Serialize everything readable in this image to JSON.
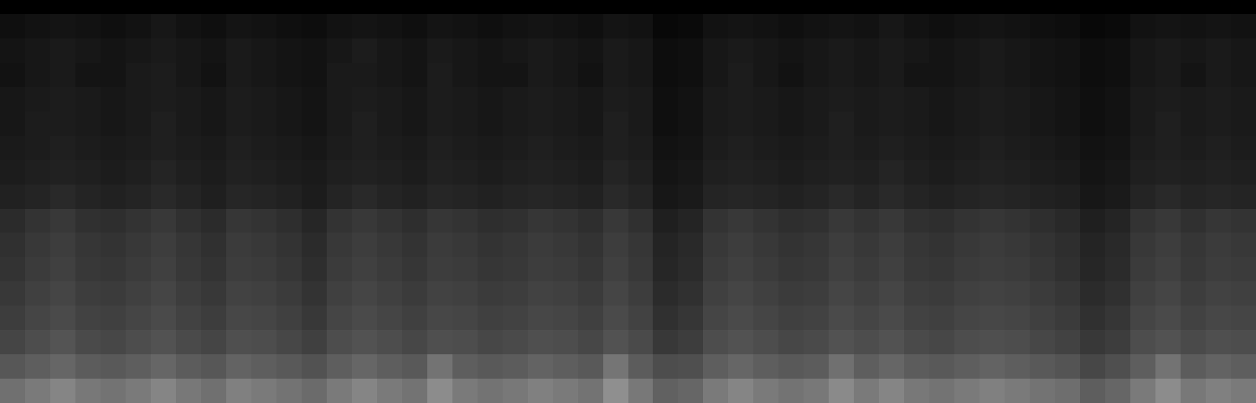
{
  "chart_data": {
    "type": "heatmap",
    "tick_labels": false,
    "zlim": [
      0,
      100
    ],
    "cells": [
      [
        6,
        7,
        8,
        7,
        6,
        7,
        9,
        7,
        6,
        8,
        7,
        6,
        5,
        7,
        8,
        7,
        6,
        8,
        7,
        6,
        7,
        8,
        7,
        6,
        8,
        7,
        3,
        4,
        7,
        8,
        7,
        6,
        7,
        8,
        7,
        9,
        7,
        6,
        7,
        8,
        7,
        6,
        5,
        3,
        4,
        7,
        8,
        7,
        8,
        7
      ],
      [
        8,
        9,
        10,
        9,
        8,
        9,
        10,
        9,
        8,
        10,
        9,
        8,
        7,
        9,
        11,
        9,
        8,
        10,
        9,
        8,
        9,
        10,
        9,
        8,
        10,
        9,
        5,
        6,
        9,
        10,
        9,
        8,
        9,
        10,
        9,
        10,
        9,
        8,
        9,
        10,
        9,
        8,
        7,
        5,
        6,
        9,
        10,
        9,
        10,
        9
      ],
      [
        7,
        9,
        10,
        8,
        8,
        10,
        11,
        9,
        7,
        10,
        9,
        8,
        7,
        10,
        10,
        9,
        8,
        11,
        9,
        8,
        8,
        10,
        9,
        7,
        10,
        9,
        5,
        6,
        9,
        11,
        9,
        7,
        9,
        10,
        9,
        10,
        8,
        8,
        9,
        10,
        9,
        8,
        7,
        5,
        6,
        9,
        10,
        8,
        10,
        9
      ],
      [
        9,
        10,
        11,
        10,
        9,
        10,
        11,
        10,
        9,
        11,
        10,
        9,
        8,
        10,
        11,
        10,
        9,
        11,
        10,
        9,
        10,
        11,
        10,
        9,
        11,
        10,
        6,
        7,
        10,
        11,
        10,
        9,
        10,
        11,
        10,
        11,
        10,
        9,
        10,
        11,
        10,
        9,
        8,
        6,
        7,
        10,
        11,
        10,
        11,
        10
      ],
      [
        9,
        11,
        11,
        10,
        9,
        10,
        12,
        10,
        9,
        11,
        10,
        9,
        8,
        10,
        12,
        10,
        9,
        11,
        10,
        9,
        10,
        11,
        10,
        9,
        12,
        10,
        6,
        7,
        10,
        11,
        10,
        9,
        10,
        12,
        10,
        11,
        10,
        9,
        10,
        11,
        10,
        9,
        8,
        6,
        7,
        10,
        12,
        10,
        11,
        10
      ],
      [
        10,
        11,
        12,
        11,
        10,
        11,
        12,
        11,
        10,
        12,
        11,
        10,
        9,
        11,
        12,
        11,
        10,
        12,
        11,
        10,
        11,
        12,
        11,
        10,
        12,
        11,
        7,
        8,
        11,
        12,
        11,
        10,
        11,
        12,
        11,
        12,
        11,
        10,
        11,
        12,
        11,
        10,
        9,
        7,
        8,
        11,
        12,
        11,
        12,
        11
      ],
      [
        11,
        12,
        13,
        12,
        11,
        12,
        14,
        12,
        11,
        13,
        12,
        11,
        10,
        12,
        13,
        12,
        11,
        13,
        12,
        11,
        12,
        13,
        12,
        11,
        14,
        12,
        8,
        9,
        12,
        13,
        12,
        11,
        12,
        13,
        12,
        14,
        12,
        11,
        12,
        13,
        12,
        11,
        10,
        8,
        9,
        12,
        13,
        12,
        13,
        12
      ],
      [
        13,
        14,
        16,
        14,
        13,
        14,
        16,
        14,
        12,
        15,
        14,
        13,
        11,
        14,
        16,
        14,
        13,
        15,
        14,
        13,
        14,
        15,
        14,
        13,
        16,
        14,
        9,
        10,
        14,
        15,
        14,
        13,
        14,
        16,
        14,
        16,
        14,
        13,
        14,
        15,
        14,
        13,
        12,
        9,
        10,
        14,
        16,
        14,
        15,
        14
      ],
      [
        17,
        20,
        22,
        19,
        18,
        20,
        22,
        19,
        17,
        21,
        20,
        18,
        15,
        20,
        22,
        20,
        18,
        21,
        20,
        18,
        19,
        21,
        20,
        18,
        22,
        19,
        12,
        14,
        20,
        22,
        20,
        18,
        19,
        22,
        20,
        22,
        19,
        18,
        20,
        21,
        20,
        18,
        16,
        12,
        14,
        20,
        22,
        19,
        21,
        20
      ],
      [
        19,
        22,
        24,
        21,
        20,
        22,
        24,
        21,
        19,
        23,
        22,
        20,
        17,
        22,
        24,
        22,
        20,
        23,
        22,
        20,
        21,
        23,
        22,
        20,
        24,
        21,
        14,
        16,
        22,
        24,
        22,
        20,
        21,
        24,
        22,
        24,
        21,
        20,
        22,
        23,
        22,
        20,
        18,
        14,
        16,
        22,
        24,
        21,
        23,
        22
      ],
      [
        20,
        23,
        25,
        22,
        21,
        23,
        25,
        22,
        20,
        24,
        23,
        21,
        18,
        23,
        25,
        23,
        21,
        24,
        23,
        21,
        22,
        24,
        23,
        21,
        25,
        22,
        15,
        17,
        23,
        25,
        23,
        21,
        22,
        25,
        23,
        25,
        22,
        21,
        23,
        24,
        23,
        21,
        19,
        15,
        17,
        23,
        25,
        22,
        24,
        23
      ],
      [
        22,
        25,
        27,
        24,
        23,
        25,
        27,
        24,
        22,
        26,
        25,
        23,
        20,
        25,
        27,
        25,
        23,
        26,
        25,
        23,
        24,
        26,
        25,
        23,
        27,
        24,
        17,
        19,
        25,
        27,
        25,
        23,
        24,
        27,
        25,
        27,
        24,
        23,
        25,
        26,
        25,
        23,
        21,
        17,
        19,
        25,
        27,
        24,
        26,
        25
      ],
      [
        24,
        27,
        29,
        26,
        25,
        27,
        29,
        26,
        24,
        28,
        27,
        25,
        22,
        27,
        29,
        27,
        25,
        28,
        27,
        25,
        26,
        28,
        27,
        25,
        29,
        26,
        19,
        21,
        27,
        29,
        27,
        25,
        26,
        29,
        27,
        29,
        26,
        25,
        27,
        28,
        27,
        25,
        23,
        19,
        21,
        27,
        29,
        26,
        28,
        27
      ],
      [
        27,
        30,
        33,
        29,
        28,
        30,
        32,
        29,
        27,
        31,
        30,
        28,
        25,
        30,
        32,
        30,
        28,
        31,
        30,
        28,
        29,
        31,
        30,
        28,
        32,
        29,
        22,
        24,
        30,
        32,
        30,
        28,
        29,
        32,
        30,
        32,
        29,
        28,
        30,
        31,
        30,
        28,
        26,
        22,
        24,
        30,
        32,
        29,
        31,
        30
      ],
      [
        34,
        37,
        40,
        36,
        35,
        37,
        40,
        36,
        34,
        39,
        37,
        35,
        32,
        37,
        40,
        37,
        35,
        45,
        37,
        35,
        36,
        39,
        37,
        35,
        46,
        36,
        30,
        31,
        37,
        40,
        37,
        35,
        36,
        44,
        37,
        40,
        36,
        35,
        37,
        39,
        37,
        35,
        33,
        28,
        31,
        37,
        45,
        36,
        39,
        37
      ],
      [
        44,
        48,
        52,
        47,
        45,
        48,
        52,
        47,
        44,
        50,
        48,
        45,
        42,
        48,
        52,
        48,
        45,
        55,
        48,
        45,
        47,
        50,
        48,
        45,
        56,
        47,
        38,
        40,
        48,
        52,
        48,
        45,
        47,
        54,
        48,
        52,
        47,
        45,
        48,
        50,
        48,
        45,
        43,
        37,
        40,
        48,
        55,
        47,
        50,
        48
      ]
    ]
  }
}
